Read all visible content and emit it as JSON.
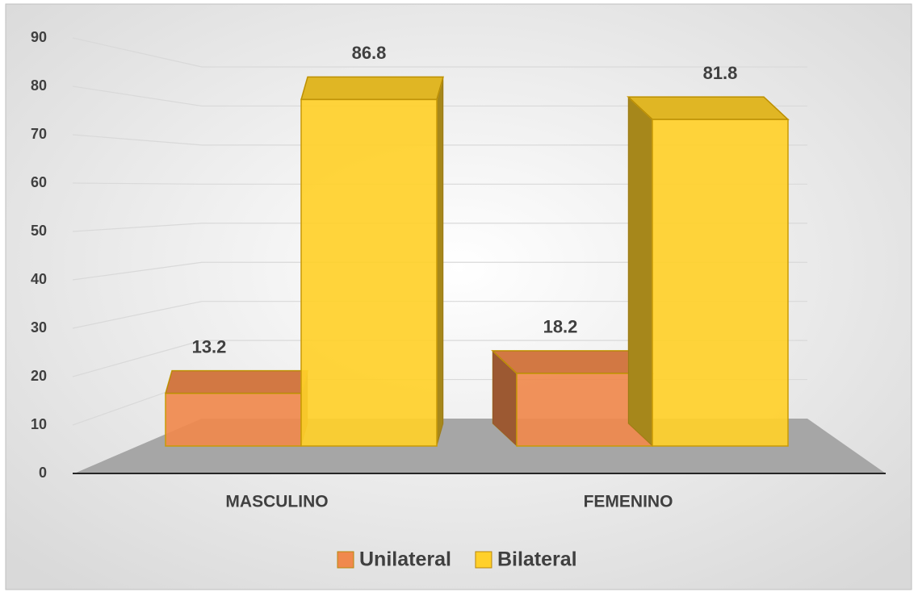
{
  "chart_data": {
    "type": "bar3d",
    "categories": [
      "MASCULINO",
      "FEMENINO"
    ],
    "series": [
      {
        "name": "Unilateral",
        "color": "#f0894d",
        "values": [
          13.2,
          18.2
        ]
      },
      {
        "name": "Bilateral",
        "color": "#ffd02a",
        "values": [
          86.8,
          81.8
        ]
      }
    ],
    "ylim": [
      0,
      90
    ],
    "yticks": [
      0,
      10,
      20,
      30,
      40,
      50,
      60,
      70,
      80,
      90
    ],
    "grid": true,
    "legend": "bottom"
  }
}
